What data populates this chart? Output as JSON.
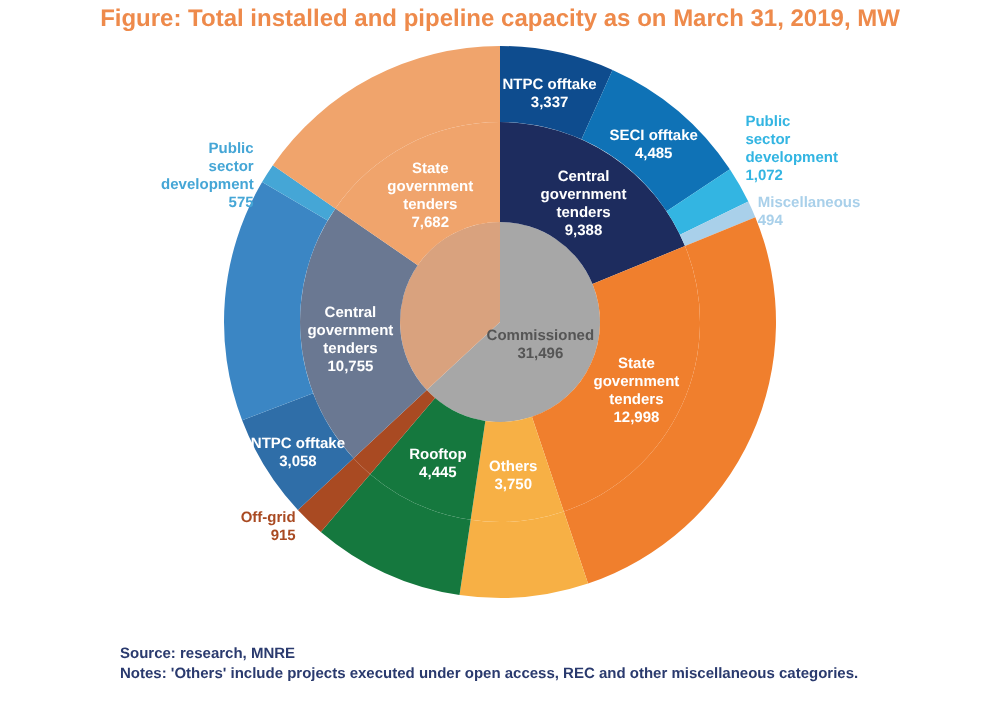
{
  "chart_data": {
    "type": "donut",
    "title": "Figure: Total installed and pipeline capacity as on March 31, 2019, MW",
    "annotations": [
      "Source: research, MNRE",
      "Notes: 'Others' include projects executed under open access, REC and other miscellaneous categories."
    ],
    "series": [
      {
        "values": [
          31496,
          18437
        ],
        "colors": [
          "#a7a7a7",
          "#d9a27e"
        ],
        "value_labels": [
          "Commissioned 31,496",
          null
        ]
      },
      {
        "values": [
          9388,
          12998,
          3750,
          4445,
          915,
          10755,
          7682
        ],
        "colors": [
          "#1d2c5e",
          "#f07f2d",
          "#f7b045",
          "#15783e",
          "#a94a22",
          "#6a7892",
          "#f0a46c"
        ],
        "value_labels": [
          "Central government tenders 9,388",
          "State government tenders 12,998",
          "Others 3,750",
          "Rooftop 4,445",
          null,
          "Central government tenders 10,755",
          "State government tenders 7,682"
        ]
      },
      {
        "values": [
          3337,
          4485,
          1072,
          494,
          12998,
          3750,
          4445,
          915,
          3058,
          7122,
          575,
          7682
        ],
        "colors": [
          "#0e4c8e",
          "#0f72b6",
          "#33b5e2",
          "#a9d0ea",
          "#f07f2d",
          "#f7b045",
          "#15783e",
          "#a94a22",
          "#2f6ea8",
          "#3b86c4",
          "#45a6d6",
          "#f0a46c"
        ],
        "value_labels": [
          "NTPC offtake 3,337",
          "SECI offtake 4,485",
          "Public sector development 1,072",
          "Miscellaneous 494",
          null,
          null,
          null,
          "Off-grid 915",
          "NTPC offtake 3,058",
          null,
          "Public sector development 575",
          null
        ]
      }
    ]
  }
}
